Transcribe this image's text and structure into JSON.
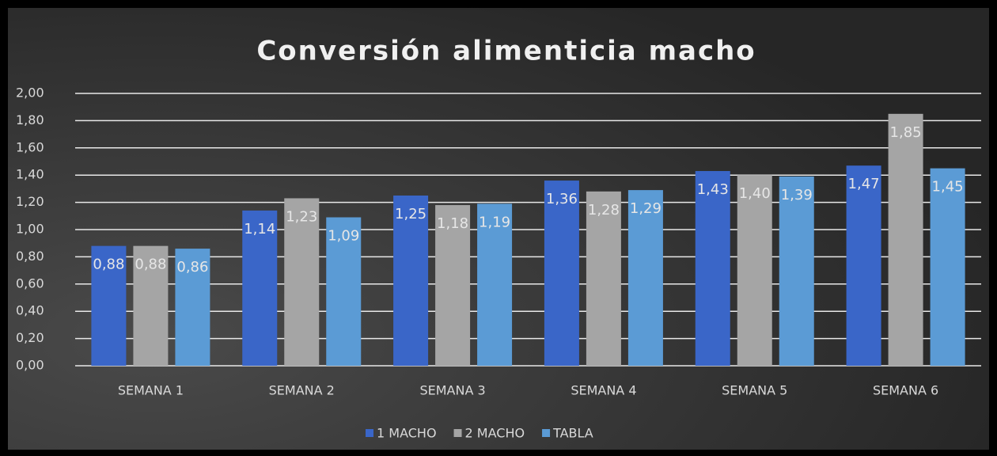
{
  "chart_data": {
    "type": "bar",
    "title": "Conversión alimenticia macho",
    "categories": [
      "SEMANA 1",
      "SEMANA 2",
      "SEMANA 3",
      "SEMANA 4",
      "SEMANA 5",
      "SEMANA 6"
    ],
    "series": [
      {
        "name": "1 MACHO",
        "color": "#3a66c8",
        "values": [
          0.88,
          1.14,
          1.25,
          1.36,
          1.43,
          1.47
        ],
        "value_labels": [
          "0,88",
          "1,14",
          "1,25",
          "1,36",
          "1,43",
          "1,47"
        ]
      },
      {
        "name": "2 MACHO",
        "color": "#a5a5a5",
        "values": [
          0.88,
          1.23,
          1.18,
          1.28,
          1.4,
          1.85
        ],
        "value_labels": [
          "0,88",
          "1,23",
          "1,18",
          "1,28",
          "1,40",
          "1,85"
        ]
      },
      {
        "name": "TABLA",
        "color": "#5b9bd5",
        "values": [
          0.86,
          1.09,
          1.19,
          1.29,
          1.39,
          1.45
        ],
        "value_labels": [
          "0,86",
          "1,09",
          "1,19",
          "1,29",
          "1,39",
          "1,45"
        ]
      }
    ],
    "ylim": [
      0,
      2
    ],
    "yticks": [
      {
        "value": 0,
        "label": "0,00"
      },
      {
        "value": 0.2,
        "label": "0,20"
      },
      {
        "value": 0.4,
        "label": "0,40"
      },
      {
        "value": 0.6,
        "label": "0,60"
      },
      {
        "value": 0.8,
        "label": "0,80"
      },
      {
        "value": 1,
        "label": "1,00"
      },
      {
        "value": 1.2,
        "label": "1,20"
      },
      {
        "value": 1.4,
        "label": "1,40"
      },
      {
        "value": 1.6,
        "label": "1,60"
      },
      {
        "value": 1.8,
        "label": "1,80"
      },
      {
        "value": 2,
        "label": "2,00"
      }
    ],
    "grid": true,
    "legend": "bottom"
  }
}
